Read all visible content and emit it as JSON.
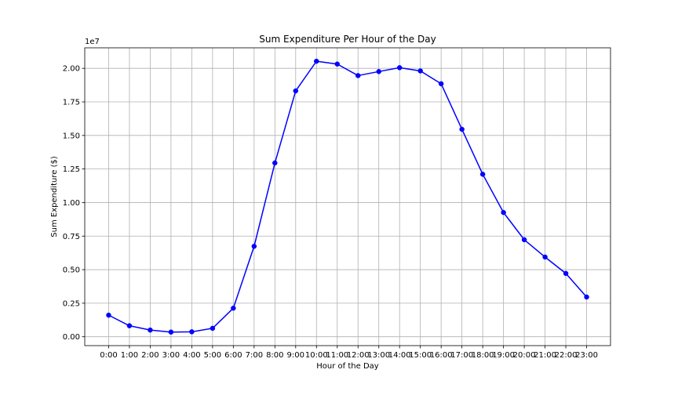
{
  "chart_data": {
    "type": "line",
    "title": "Sum Expenditure Per Hour of the Day",
    "xlabel": "Hour of the Day",
    "ylabel": "Sum Expenditure ($)",
    "y_offset_label": "1e7",
    "categories": [
      "0:00",
      "1:00",
      "2:00",
      "3:00",
      "4:00",
      "5:00",
      "6:00",
      "7:00",
      "8:00",
      "9:00",
      "10:00",
      "11:00",
      "12:00",
      "13:00",
      "14:00",
      "15:00",
      "16:00",
      "17:00",
      "18:00",
      "19:00",
      "20:00",
      "21:00",
      "22:00",
      "23:00"
    ],
    "series": [
      {
        "values": [
          0.161,
          0.082,
          0.05,
          0.035,
          0.037,
          0.063,
          0.213,
          0.674,
          1.295,
          1.832,
          2.053,
          2.032,
          1.946,
          1.976,
          2.005,
          1.981,
          1.885,
          1.546,
          1.211,
          0.926,
          0.723,
          0.594,
          0.472,
          0.296
        ],
        "color": "#0000ff"
      }
    ],
    "ylim": [
      -0.066,
      2.153
    ],
    "yticks": [
      0.0,
      0.25,
      0.5,
      0.75,
      1.0,
      1.25,
      1.5,
      1.75,
      2.0
    ],
    "ytick_labels": [
      "0.00",
      "0.25",
      "0.50",
      "0.75",
      "1.00",
      "1.25",
      "1.50",
      "1.75",
      "2.00"
    ],
    "grid": true,
    "marker": "circle"
  }
}
